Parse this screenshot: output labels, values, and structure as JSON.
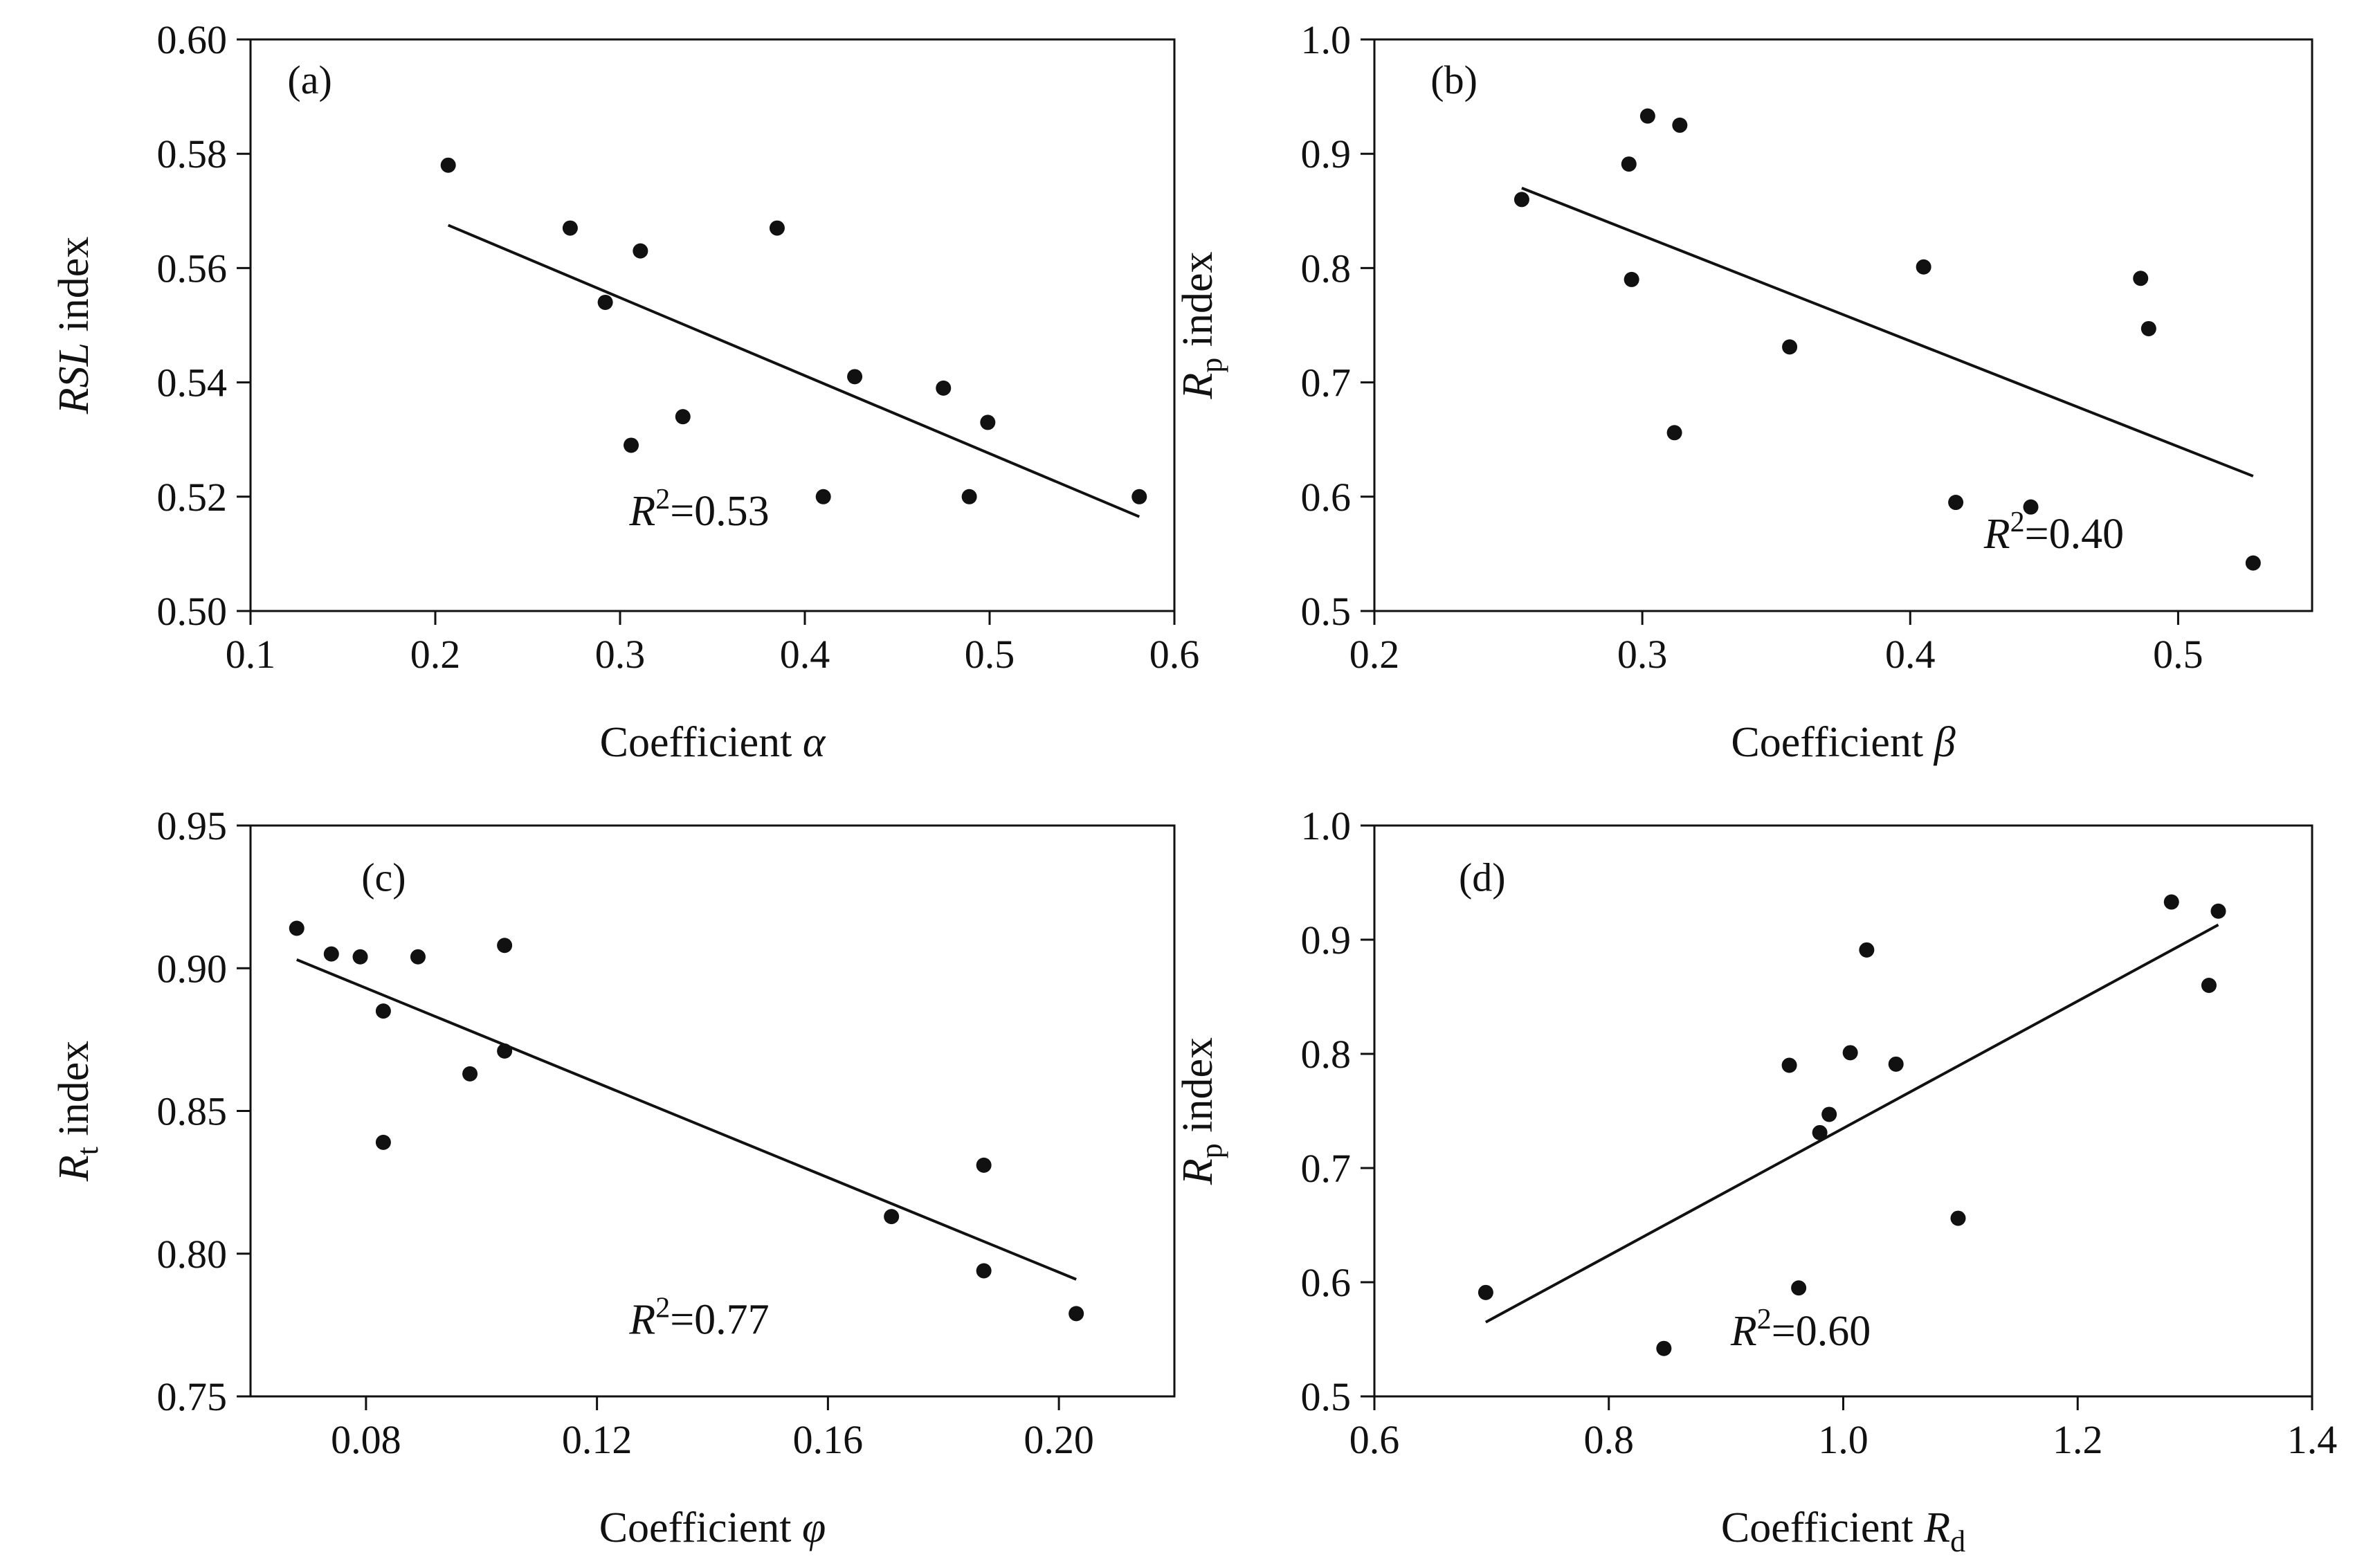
{
  "colors": {
    "ink": "#111111",
    "background": "#ffffff"
  },
  "chart_data": [
    {
      "type": "scatter",
      "panel": "(a)",
      "xlabel_main": "Coefficient ",
      "xlabel_sym": "α",
      "xlabel_sub": "",
      "ylabel_main": "RSL",
      "ylabel_sub": "",
      "ylabel_tail": " index",
      "ylabel_italic_main": true,
      "xlim": [
        0.1,
        0.6
      ],
      "ylim": [
        0.5,
        0.6
      ],
      "xticks": [
        "0.1",
        "0.2",
        "0.3",
        "0.4",
        "0.5",
        "0.6"
      ],
      "yticks": [
        "0.50",
        "0.52",
        "0.54",
        "0.56",
        "0.58",
        "0.60"
      ],
      "x": [
        0.207,
        0.273,
        0.292,
        0.306,
        0.311,
        0.334,
        0.385,
        0.41,
        0.427,
        0.475,
        0.489,
        0.499,
        0.581
      ],
      "y": [
        0.578,
        0.567,
        0.554,
        0.529,
        0.563,
        0.534,
        0.567,
        0.52,
        0.541,
        0.539,
        0.52,
        0.533,
        0.52
      ],
      "fit": {
        "x": [
          0.207,
          0.581
        ],
        "y": [
          0.5675,
          0.5165
        ]
      },
      "r2_sym": "R",
      "r2_sup": "2",
      "r2_value": "=0.53"
    },
    {
      "type": "scatter",
      "panel": "(b)",
      "xlabel_main": "Coefficient ",
      "xlabel_sym": "β",
      "xlabel_sub": "",
      "ylabel_main": "R",
      "ylabel_sub": "p",
      "ylabel_tail": " index",
      "ylabel_italic_main": true,
      "xlim": [
        0.2,
        0.55
      ],
      "ylim": [
        0.5,
        1.0
      ],
      "xticks": [
        "0.2",
        "0.3",
        "0.4",
        "0.5"
      ],
      "yticks": [
        "0.5",
        "0.6",
        "0.7",
        "0.8",
        "0.9",
        "1.0"
      ],
      "x": [
        0.255,
        0.295,
        0.296,
        0.302,
        0.312,
        0.314,
        0.355,
        0.405,
        0.417,
        0.445,
        0.486,
        0.489,
        0.528
      ],
      "y": [
        0.86,
        0.891,
        0.79,
        0.933,
        0.656,
        0.925,
        0.731,
        0.801,
        0.595,
        0.591,
        0.791,
        0.747,
        0.542
      ],
      "fit": {
        "x": [
          0.255,
          0.528
        ],
        "y": [
          0.87,
          0.618
        ]
      },
      "r2_sym": "R",
      "r2_sup": "2",
      "r2_value": "=0.40"
    },
    {
      "type": "scatter",
      "panel": "(c)",
      "xlabel_main": "Coefficient ",
      "xlabel_sym": "φ",
      "xlabel_sub": "",
      "ylabel_main": "R",
      "ylabel_sub": "t",
      "ylabel_tail": " index",
      "ylabel_italic_main": true,
      "xlim": [
        0.06,
        0.22
      ],
      "ylim": [
        0.75,
        0.95
      ],
      "xticks": [
        "0.08",
        "0.12",
        "0.16",
        "0.20"
      ],
      "yticks": [
        "0.75",
        "0.80",
        "0.85",
        "0.90",
        "0.95"
      ],
      "x": [
        0.068,
        0.074,
        0.079,
        0.083,
        0.083,
        0.089,
        0.098,
        0.104,
        0.104,
        0.171,
        0.187,
        0.187,
        0.203
      ],
      "y": [
        0.914,
        0.905,
        0.904,
        0.885,
        0.839,
        0.904,
        0.863,
        0.908,
        0.871,
        0.813,
        0.831,
        0.794,
        0.779
      ],
      "fit": {
        "x": [
          0.068,
          0.203
        ],
        "y": [
          0.903,
          0.791
        ]
      },
      "r2_sym": "R",
      "r2_sup": "2",
      "r2_value": "=0.77"
    },
    {
      "type": "scatter",
      "panel": "(d)",
      "xlabel_main": "Coefficient ",
      "xlabel_sym": "R",
      "xlabel_sub": "d",
      "ylabel_main": "R",
      "ylabel_sub": "p",
      "ylabel_tail": " index",
      "ylabel_italic_main": true,
      "xlim": [
        0.6,
        1.4
      ],
      "ylim": [
        0.5,
        1.0
      ],
      "xticks": [
        "0.6",
        "0.8",
        "1.0",
        "1.2",
        "1.4"
      ],
      "yticks": [
        "0.5",
        "0.6",
        "0.7",
        "0.8",
        "0.9",
        "1.0"
      ],
      "x": [
        0.695,
        0.847,
        0.954,
        0.962,
        0.98,
        0.988,
        1.006,
        1.02,
        1.045,
        1.098,
        1.28,
        1.312,
        1.32
      ],
      "y": [
        0.591,
        0.542,
        0.79,
        0.595,
        0.731,
        0.747,
        0.801,
        0.891,
        0.791,
        0.656,
        0.933,
        0.86,
        0.925
      ],
      "fit": {
        "x": [
          0.695,
          1.32
        ],
        "y": [
          0.565,
          0.913
        ]
      },
      "r2_sym": "R",
      "r2_sup": "2",
      "r2_value": "=0.60"
    }
  ]
}
